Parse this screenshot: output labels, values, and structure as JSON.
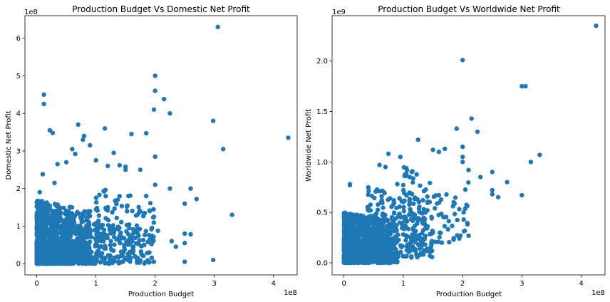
{
  "chart_data": [
    {
      "type": "scatter",
      "title": "Production Budget Vs Domestic Net Profit",
      "xlabel": "Production Budget",
      "ylabel": "Domestic Net Profit",
      "x_offset_label": "1e8",
      "y_offset_label": "1e8",
      "xlim": [
        -0.2,
        4.4
      ],
      "ylim": [
        -0.3,
        6.6
      ],
      "xticks": [
        0,
        1,
        2,
        3,
        4
      ],
      "yticks": [
        0,
        1,
        2,
        3,
        4,
        5,
        6
      ],
      "color": "#1f77b4",
      "grid": false,
      "highlights": [
        [
          3.06,
          6.3
        ],
        [
          2.0,
          5.0
        ],
        [
          2.0,
          4.6
        ],
        [
          2.15,
          4.38
        ],
        [
          1.98,
          4.1
        ],
        [
          0.12,
          4.5
        ],
        [
          0.12,
          4.25
        ],
        [
          2.25,
          4.0
        ],
        [
          2.98,
          3.8
        ],
        [
          4.25,
          3.35
        ],
        [
          3.15,
          3.05
        ],
        [
          3.3,
          1.3
        ],
        [
          2.98,
          0.1
        ],
        [
          2.5,
          0.05
        ],
        [
          0.7,
          3.7
        ],
        [
          0.22,
          3.55
        ],
        [
          0.27,
          3.48
        ],
        [
          1.15,
          3.6
        ],
        [
          1.6,
          3.45
        ],
        [
          1.85,
          3.47
        ],
        [
          0.8,
          3.4
        ],
        [
          0.78,
          3.3
        ],
        [
          0.9,
          3.15
        ],
        [
          1.3,
          2.95
        ],
        [
          2.0,
          2.85
        ],
        [
          1.0,
          2.75
        ],
        [
          0.35,
          2.65
        ],
        [
          0.5,
          2.7
        ],
        [
          1.4,
          2.62
        ],
        [
          1.5,
          2.58
        ],
        [
          1.5,
          2.5
        ],
        [
          1.75,
          2.5
        ],
        [
          1.2,
          2.6
        ],
        [
          0.6,
          3.05
        ],
        [
          0.65,
          2.92
        ],
        [
          2.0,
          2.1
        ],
        [
          2.25,
          2.0
        ],
        [
          2.6,
          2.0
        ],
        [
          2.7,
          1.72
        ],
        [
          2.5,
          1.6
        ],
        [
          2.5,
          0.8
        ],
        [
          2.6,
          0.78
        ],
        [
          2.5,
          0.55
        ],
        [
          0.1,
          2.38
        ],
        [
          0.3,
          2.15
        ],
        [
          0.05,
          1.9
        ],
        [
          1.55,
          1.8
        ],
        [
          1.85,
          1.8
        ],
        [
          1.2,
          1.5
        ],
        [
          1.7,
          1.3
        ],
        [
          2.28,
          0.6
        ],
        [
          2.35,
          0.45
        ]
      ],
      "cluster": [
        {
          "x": [
            0,
            0.9
          ],
          "y": [
            0,
            1.7
          ],
          "n": 900
        },
        {
          "x": [
            0.5,
            2.0
          ],
          "y": [
            0,
            1.2
          ],
          "n": 320
        },
        {
          "x": [
            0,
            0.5
          ],
          "y": [
            0,
            0.6
          ],
          "n": 500
        },
        {
          "x": [
            1.0,
            2.1
          ],
          "y": [
            0.6,
            2.0
          ],
          "n": 80
        }
      ]
    },
    {
      "type": "scatter",
      "title": "Production Budget Vs Worldwide Net Profit",
      "xlabel": "Production Budget",
      "ylabel": "Worldwide Net Profit",
      "x_offset_label": "1e8",
      "y_offset_label": "1e9",
      "xlim": [
        -0.2,
        4.4
      ],
      "ylim": [
        -0.12,
        2.45
      ],
      "xticks": [
        0,
        1,
        2,
        3,
        4
      ],
      "yticks": [
        0.0,
        0.5,
        1.0,
        1.5,
        2.0
      ],
      "ytick_labels": [
        "0.0",
        "0.5",
        "1.0",
        "1.5",
        "2.0"
      ],
      "color": "#1f77b4",
      "grid": false,
      "highlights": [
        [
          4.25,
          2.35
        ],
        [
          2.0,
          2.01
        ],
        [
          3.0,
          1.75
        ],
        [
          3.06,
          1.75
        ],
        [
          2.15,
          1.43
        ],
        [
          2.25,
          1.3
        ],
        [
          1.9,
          1.33
        ],
        [
          1.25,
          1.22
        ],
        [
          1.5,
          1.12
        ],
        [
          1.6,
          1.1
        ],
        [
          1.7,
          1.13
        ],
        [
          2.0,
          1.15
        ],
        [
          3.3,
          1.07
        ],
        [
          3.15,
          1.0
        ],
        [
          2.0,
          1.05
        ],
        [
          2.0,
          1.0
        ],
        [
          2.1,
          0.92
        ],
        [
          2.3,
          0.85
        ],
        [
          2.5,
          0.9
        ],
        [
          2.5,
          0.72
        ],
        [
          2.5,
          0.68
        ],
        [
          2.6,
          0.65
        ],
        [
          2.75,
          0.8
        ],
        [
          3.0,
          0.67
        ],
        [
          0.1,
          0.78
        ],
        [
          0.1,
          0.77
        ],
        [
          0.75,
          1.08
        ],
        [
          0.6,
          0.97
        ],
        [
          0.7,
          0.95
        ],
        [
          0.95,
          1.05
        ],
        [
          0.9,
          0.78
        ],
        [
          1.0,
          0.77
        ],
        [
          1.6,
          0.67
        ],
        [
          1.85,
          0.6
        ],
        [
          1.65,
          0.2
        ],
        [
          2.1,
          0.27
        ],
        [
          1.5,
          0.3
        ],
        [
          1.3,
          0.22
        ]
      ],
      "cluster": [
        {
          "x": [
            0,
            0.9
          ],
          "y": [
            0,
            0.5
          ],
          "n": 900
        },
        {
          "x": [
            0.4,
            1.5
          ],
          "y": [
            0.05,
            0.75
          ],
          "n": 280
        },
        {
          "x": [
            0,
            0.4
          ],
          "y": [
            0,
            0.25
          ],
          "n": 500
        },
        {
          "x": [
            1.0,
            2.1
          ],
          "y": [
            0.2,
            0.95
          ],
          "n": 110
        }
      ]
    }
  ]
}
